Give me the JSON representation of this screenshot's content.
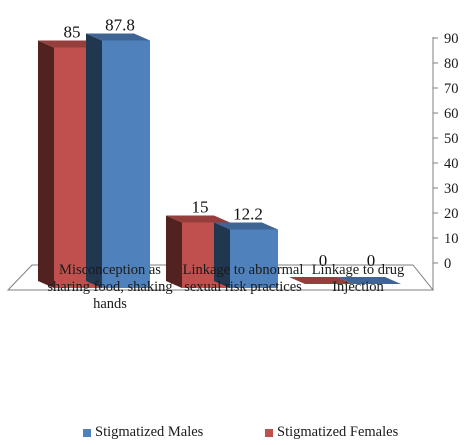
{
  "chart_data": {
    "type": "bar",
    "categories": [
      "Misconception as sharing food, shaking hands",
      "Linkage to abnormal sexual risk practices",
      "Linkage to drug Injection"
    ],
    "series": [
      {
        "name": "Stigmatized Females",
        "values": [
          85,
          15,
          0
        ],
        "labels": [
          "85",
          "15",
          "0"
        ],
        "color": "#c0504d"
      },
      {
        "name": "Stigmatized Males",
        "values": [
          87.8,
          12.2,
          0
        ],
        "labels": [
          "87.8",
          "12.2",
          "0"
        ],
        "color": "#4f81bd"
      }
    ],
    "yticks": [
      "0",
      "10",
      "20",
      "30",
      "40",
      "50",
      "60",
      "70",
      "80",
      "90"
    ],
    "ylim": [
      0,
      90
    ],
    "axis_side": "right",
    "title": "",
    "xlabel": "",
    "ylabel": "",
    "legend_position": "bottom",
    "legend_order": [
      "Stigmatized Males",
      "Stigmatized Females"
    ],
    "grid": false
  }
}
